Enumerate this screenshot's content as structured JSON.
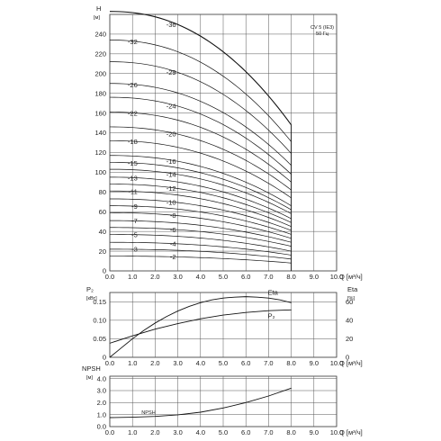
{
  "chart_data": [
    {
      "type": "line",
      "id": "head",
      "title_lines": [
        "CV 5 (IE3)",
        "50 Гц"
      ],
      "ylabel_lines": [
        "H",
        "[м]"
      ],
      "xlabel": "Q [м³/ч]",
      "xlim": [
        0,
        10
      ],
      "ylim": [
        0,
        260
      ],
      "xticks": [
        "0.0",
        "1.0",
        "2.0",
        "3.0",
        "4.0",
        "5.0",
        "6.0",
        "7.0",
        "8.0",
        "9.0",
        "10.0"
      ],
      "yticks": [
        "0",
        "20",
        "40",
        "60",
        "80",
        "100",
        "120",
        "140",
        "160",
        "180",
        "200",
        "220",
        "240"
      ],
      "grid": true,
      "q_end": 8.0,
      "series": [
        {
          "name": "-2",
          "h0": 15,
          "h_end": 8,
          "label_q": 3.0,
          "label_side": "left"
        },
        {
          "name": "-3",
          "h0": 22,
          "h_end": 12,
          "label_q": 1.3,
          "label_side": "left"
        },
        {
          "name": "-4",
          "h0": 29,
          "h_end": 16,
          "label_q": 3.0,
          "label_side": "left"
        },
        {
          "name": "-5",
          "h0": 37,
          "h_end": 20,
          "label_q": 1.3,
          "label_side": "left"
        },
        {
          "name": "-6",
          "h0": 44,
          "h_end": 25,
          "label_q": 3.0,
          "label_side": "left"
        },
        {
          "name": "-7",
          "h0": 51,
          "h_end": 29,
          "label_q": 1.3,
          "label_side": "left"
        },
        {
          "name": "-8",
          "h0": 59,
          "h_end": 33,
          "label_q": 3.0,
          "label_side": "left"
        },
        {
          "name": "-9",
          "h0": 66,
          "h_end": 37,
          "label_q": 1.3,
          "label_side": "left"
        },
        {
          "name": "-10",
          "h0": 73,
          "h_end": 41,
          "label_q": 3.0,
          "label_side": "left"
        },
        {
          "name": "-11",
          "h0": 81,
          "h_end": 45,
          "label_q": 1.3,
          "label_side": "left"
        },
        {
          "name": "-12",
          "h0": 88,
          "h_end": 49,
          "label_q": 3.0,
          "label_side": "left"
        },
        {
          "name": "-13",
          "h0": 95,
          "h_end": 53,
          "label_q": 1.3,
          "label_side": "left"
        },
        {
          "name": "-14",
          "h0": 103,
          "h_end": 58,
          "label_q": 3.0,
          "label_side": "left"
        },
        {
          "name": "-15",
          "h0": 110,
          "h_end": 62,
          "label_q": 1.3,
          "label_side": "left"
        },
        {
          "name": "-16",
          "h0": 117,
          "h_end": 66,
          "label_q": 3.0,
          "label_side": "left"
        },
        {
          "name": "-18",
          "h0": 132,
          "h_end": 74,
          "label_q": 1.3,
          "label_side": "left"
        },
        {
          "name": "-20",
          "h0": 146,
          "h_end": 82,
          "label_q": 3.0,
          "label_side": "left"
        },
        {
          "name": "-22",
          "h0": 161,
          "h_end": 90,
          "label_q": 1.3,
          "label_side": "left"
        },
        {
          "name": "-24",
          "h0": 176,
          "h_end": 98,
          "label_q": 3.0,
          "label_side": "left"
        },
        {
          "name": "-26",
          "h0": 190,
          "h_end": 107,
          "label_q": 1.3,
          "label_side": "left"
        },
        {
          "name": "-29",
          "h0": 212,
          "h_end": 119,
          "label_q": 3.0,
          "label_side": "left"
        },
        {
          "name": "-32",
          "h0": 234,
          "h_end": 131,
          "label_q": 1.3,
          "label_side": "left"
        },
        {
          "name": "-36",
          "h0": 263,
          "h_end": 148,
          "label_q": 3.0,
          "label_side": "left"
        }
      ]
    },
    {
      "type": "line",
      "id": "power",
      "ylabel_lines": [
        "P₂",
        "[кВт]"
      ],
      "y2label_lines": [
        "Eta",
        "[%]"
      ],
      "xlabel": "Q [м³/ч]",
      "xlim": [
        0,
        10
      ],
      "ylim": [
        0,
        0.175
      ],
      "y2lim": [
        0,
        70
      ],
      "xticks": [
        "0.0",
        "1.0",
        "2.0",
        "3.0",
        "4.0",
        "5.0",
        "6.0",
        "7.0",
        "8.0",
        "9.0",
        "10.0"
      ],
      "yticks": [
        "0",
        "0.05",
        "0.10",
        "0.15"
      ],
      "y2ticks": [
        "0",
        "20",
        "40",
        "60"
      ],
      "grid": true,
      "series": [
        {
          "name": "Eta",
          "axis": "right",
          "x": [
            0,
            0.5,
            1,
            1.5,
            2,
            2.5,
            3,
            3.5,
            4,
            4.5,
            5,
            5.5,
            6,
            6.5,
            7,
            7.5,
            8
          ],
          "y": [
            0,
            10,
            20,
            29,
            37,
            44,
            50,
            55,
            59,
            62,
            64,
            65,
            65.5,
            65,
            64,
            62,
            59
          ]
        },
        {
          "name": "P₂",
          "axis": "left",
          "x": [
            0,
            1,
            2,
            3,
            4,
            5,
            6,
            7,
            8
          ],
          "y": [
            0.038,
            0.058,
            0.076,
            0.091,
            0.104,
            0.114,
            0.121,
            0.126,
            0.128
          ]
        }
      ]
    },
    {
      "type": "line",
      "id": "npsh",
      "ylabel_lines": [
        "NPSH",
        "[м]"
      ],
      "xlabel": "Q [м³/ч]",
      "xlim": [
        0,
        10
      ],
      "ylim": [
        0,
        4.2
      ],
      "xticks": [
        "0.0",
        "1.0",
        "2.0",
        "3.0",
        "4.0",
        "5.0",
        "6.0",
        "7.0",
        "8.0",
        "9.0",
        "10.0"
      ],
      "yticks": [
        "0.0",
        "1.0",
        "2.0",
        "3.0",
        "4.0"
      ],
      "grid": true,
      "series": [
        {
          "name": "NPSH",
          "x": [
            0,
            1,
            2,
            3,
            4,
            5,
            6,
            7,
            8
          ],
          "y": [
            0.75,
            0.78,
            0.85,
            0.98,
            1.2,
            1.55,
            2.0,
            2.55,
            3.2
          ]
        }
      ]
    }
  ]
}
